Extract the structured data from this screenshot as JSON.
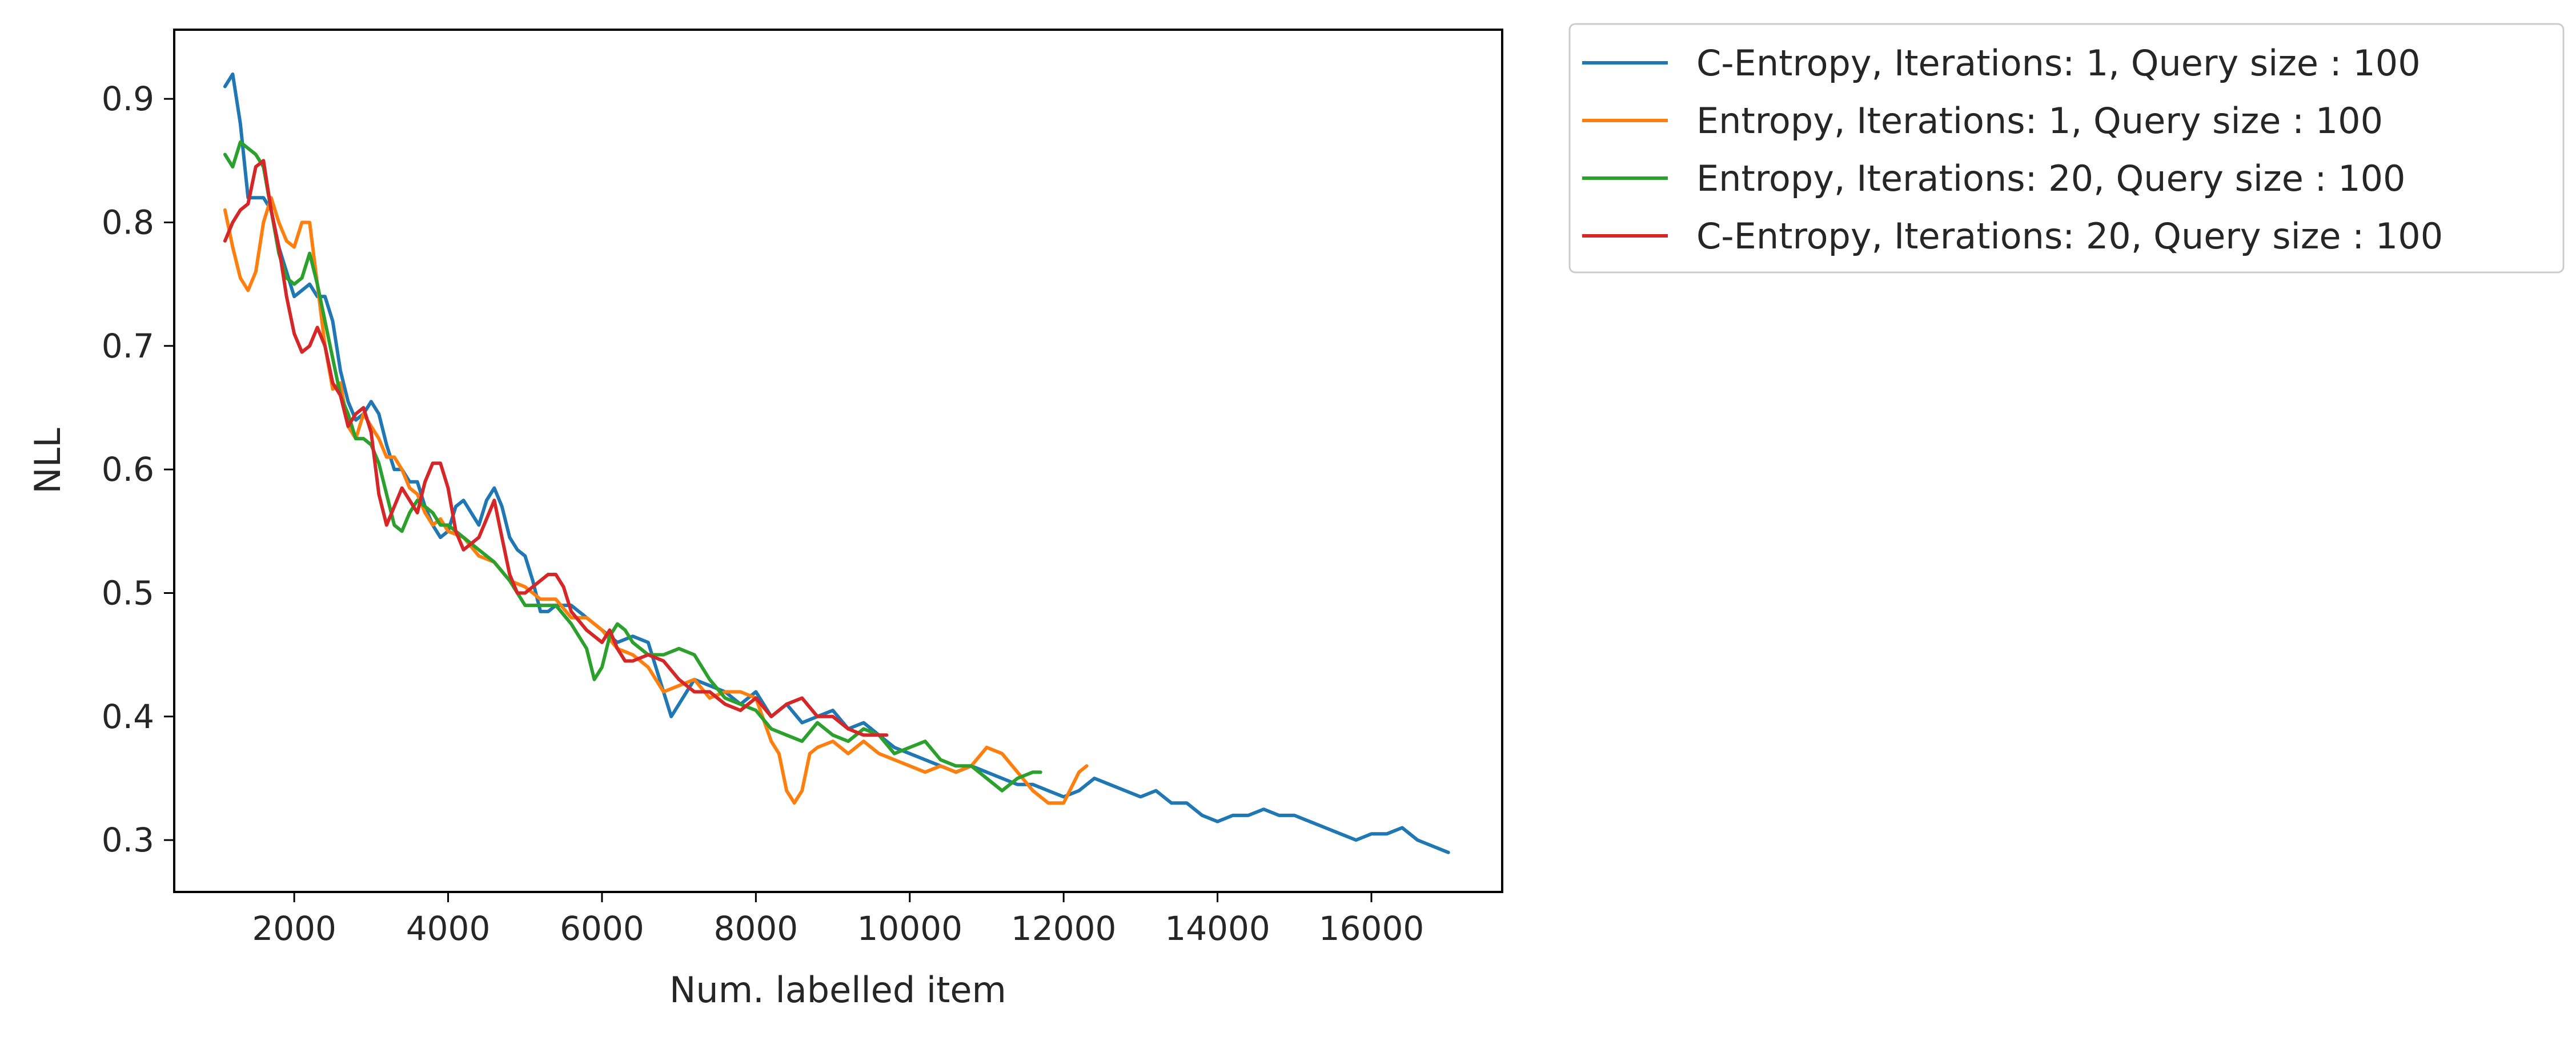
{
  "chart_data": {
    "type": "line",
    "xlabel": "Num. labelled item",
    "ylabel": "NLL",
    "xlim": [
      440,
      17700
    ],
    "ylim": [
      0.258,
      0.956
    ],
    "grid": false,
    "legend_position": "outside-top-right",
    "xticks": [
      {
        "value": 2000,
        "label": "2000"
      },
      {
        "value": 4000,
        "label": "4000"
      },
      {
        "value": 6000,
        "label": "6000"
      },
      {
        "value": 8000,
        "label": "8000"
      },
      {
        "value": 10000,
        "label": "10000"
      },
      {
        "value": 12000,
        "label": "12000"
      },
      {
        "value": 14000,
        "label": "14000"
      },
      {
        "value": 16000,
        "label": "16000"
      }
    ],
    "yticks": [
      {
        "value": 0.3,
        "label": "0.3"
      },
      {
        "value": 0.4,
        "label": "0.4"
      },
      {
        "value": 0.5,
        "label": "0.5"
      },
      {
        "value": 0.6,
        "label": "0.6"
      },
      {
        "value": 0.7,
        "label": "0.7"
      },
      {
        "value": 0.8,
        "label": "0.8"
      },
      {
        "value": 0.9,
        "label": "0.9"
      }
    ],
    "series": [
      {
        "name": "C-Entropy, Iterations: 1, Query size : 100",
        "color": "#1f77b4",
        "x": [
          1100,
          1200,
          1300,
          1400,
          1500,
          1600,
          1700,
          1800,
          1900,
          2000,
          2100,
          2200,
          2300,
          2400,
          2500,
          2600,
          2700,
          2800,
          2900,
          3000,
          3100,
          3200,
          3300,
          3400,
          3500,
          3600,
          3700,
          3800,
          3900,
          4000,
          4100,
          4200,
          4300,
          4400,
          4500,
          4600,
          4700,
          4800,
          4900,
          5000,
          5100,
          5200,
          5300,
          5400,
          5500,
          5600,
          5700,
          5800,
          5900,
          6000,
          6200,
          6400,
          6600,
          6800,
          6900,
          7000,
          7200,
          7400,
          7600,
          7800,
          8000,
          8200,
          8400,
          8600,
          8800,
          9000,
          9200,
          9400,
          9600,
          9800,
          10000,
          10200,
          10400,
          10600,
          10800,
          11000,
          11200,
          11400,
          11600,
          11800,
          12000,
          12200,
          12400,
          12600,
          12800,
          13000,
          13200,
          13400,
          13600,
          13800,
          14000,
          14200,
          14400,
          14600,
          14800,
          15000,
          15200,
          15400,
          15600,
          15800,
          16000,
          16200,
          16400,
          16600,
          16800,
          17000
        ],
        "y": [
          0.91,
          0.92,
          0.88,
          0.82,
          0.82,
          0.82,
          0.81,
          0.78,
          0.76,
          0.74,
          0.745,
          0.75,
          0.74,
          0.74,
          0.72,
          0.68,
          0.655,
          0.64,
          0.645,
          0.655,
          0.645,
          0.62,
          0.6,
          0.6,
          0.59,
          0.59,
          0.57,
          0.555,
          0.545,
          0.55,
          0.57,
          0.575,
          0.565,
          0.555,
          0.575,
          0.585,
          0.57,
          0.545,
          0.535,
          0.53,
          0.51,
          0.485,
          0.485,
          0.49,
          0.49,
          0.49,
          0.485,
          0.48,
          0.475,
          0.47,
          0.46,
          0.465,
          0.46,
          0.42,
          0.4,
          0.41,
          0.43,
          0.425,
          0.42,
          0.41,
          0.42,
          0.4,
          0.41,
          0.395,
          0.4,
          0.405,
          0.39,
          0.395,
          0.385,
          0.375,
          0.37,
          0.365,
          0.36,
          0.355,
          0.36,
          0.355,
          0.35,
          0.345,
          0.345,
          0.34,
          0.335,
          0.34,
          0.35,
          0.345,
          0.34,
          0.335,
          0.34,
          0.33,
          0.33,
          0.32,
          0.315,
          0.32,
          0.32,
          0.325,
          0.32,
          0.32,
          0.315,
          0.31,
          0.305,
          0.3,
          0.305,
          0.305,
          0.31,
          0.3,
          0.295,
          0.29
        ]
      },
      {
        "name": "Entropy, Iterations: 1, Query size : 100",
        "color": "#ff7f0e",
        "x": [
          1100,
          1200,
          1300,
          1400,
          1500,
          1600,
          1700,
          1800,
          1900,
          2000,
          2100,
          2200,
          2300,
          2400,
          2500,
          2600,
          2700,
          2800,
          2900,
          3000,
          3100,
          3200,
          3300,
          3400,
          3500,
          3600,
          3700,
          3800,
          3900,
          4000,
          4200,
          4400,
          4600,
          4800,
          5000,
          5200,
          5400,
          5600,
          5800,
          6000,
          6200,
          6400,
          6600,
          6800,
          7000,
          7200,
          7400,
          7600,
          7800,
          8000,
          8200,
          8300,
          8400,
          8500,
          8600,
          8700,
          8800,
          9000,
          9200,
          9400,
          9600,
          9800,
          10000,
          10200,
          10400,
          10600,
          10800,
          11000,
          11200,
          11400,
          11600,
          11800,
          12000,
          12200,
          12300
        ],
        "y": [
          0.81,
          0.78,
          0.755,
          0.745,
          0.76,
          0.8,
          0.82,
          0.8,
          0.785,
          0.78,
          0.8,
          0.8,
          0.75,
          0.7,
          0.665,
          0.67,
          0.635,
          0.625,
          0.645,
          0.635,
          0.625,
          0.61,
          0.61,
          0.6,
          0.585,
          0.58,
          0.565,
          0.555,
          0.56,
          0.55,
          0.545,
          0.53,
          0.525,
          0.51,
          0.505,
          0.495,
          0.495,
          0.48,
          0.48,
          0.47,
          0.455,
          0.45,
          0.44,
          0.42,
          0.425,
          0.43,
          0.415,
          0.42,
          0.42,
          0.415,
          0.38,
          0.37,
          0.34,
          0.33,
          0.34,
          0.37,
          0.375,
          0.38,
          0.37,
          0.38,
          0.37,
          0.365,
          0.36,
          0.355,
          0.36,
          0.355,
          0.36,
          0.375,
          0.37,
          0.355,
          0.34,
          0.33,
          0.33,
          0.355,
          0.36
        ]
      },
      {
        "name": "Entropy, Iterations: 20, Query size : 100",
        "color": "#2ca02c",
        "x": [
          1100,
          1200,
          1300,
          1400,
          1500,
          1600,
          1700,
          1800,
          1900,
          2000,
          2100,
          2200,
          2300,
          2400,
          2500,
          2600,
          2700,
          2800,
          2900,
          3000,
          3100,
          3200,
          3300,
          3400,
          3500,
          3600,
          3700,
          3800,
          3900,
          4000,
          4200,
          4400,
          4600,
          4800,
          5000,
          5200,
          5400,
          5600,
          5800,
          5900,
          6000,
          6100,
          6200,
          6300,
          6400,
          6600,
          6800,
          7000,
          7200,
          7400,
          7600,
          7800,
          8000,
          8200,
          8400,
          8600,
          8800,
          9000,
          9200,
          9400,
          9600,
          9800,
          10000,
          10200,
          10400,
          10600,
          10800,
          11000,
          11200,
          11400,
          11600,
          11700
        ],
        "y": [
          0.855,
          0.845,
          0.865,
          0.86,
          0.855,
          0.845,
          0.81,
          0.775,
          0.755,
          0.75,
          0.755,
          0.775,
          0.75,
          0.72,
          0.69,
          0.66,
          0.645,
          0.625,
          0.625,
          0.62,
          0.605,
          0.58,
          0.555,
          0.55,
          0.565,
          0.575,
          0.57,
          0.565,
          0.555,
          0.555,
          0.545,
          0.535,
          0.525,
          0.51,
          0.49,
          0.49,
          0.49,
          0.475,
          0.455,
          0.43,
          0.44,
          0.465,
          0.475,
          0.47,
          0.46,
          0.45,
          0.45,
          0.455,
          0.45,
          0.43,
          0.415,
          0.41,
          0.405,
          0.39,
          0.385,
          0.38,
          0.395,
          0.385,
          0.38,
          0.39,
          0.385,
          0.37,
          0.375,
          0.38,
          0.365,
          0.36,
          0.36,
          0.35,
          0.34,
          0.35,
          0.355,
          0.355
        ]
      },
      {
        "name": "C-Entropy, Iterations: 20, Query size : 100",
        "color": "#d62728",
        "x": [
          1100,
          1200,
          1300,
          1400,
          1500,
          1600,
          1700,
          1800,
          1900,
          2000,
          2100,
          2200,
          2300,
          2400,
          2500,
          2600,
          2700,
          2800,
          2900,
          3000,
          3100,
          3200,
          3300,
          3400,
          3500,
          3600,
          3700,
          3800,
          3900,
          4000,
          4100,
          4200,
          4300,
          4400,
          4500,
          4600,
          4700,
          4800,
          4900,
          5000,
          5100,
          5200,
          5300,
          5400,
          5500,
          5600,
          5800,
          6000,
          6100,
          6200,
          6300,
          6400,
          6600,
          6800,
          7000,
          7200,
          7400,
          7600,
          7800,
          8000,
          8200,
          8400,
          8600,
          8800,
          9000,
          9200,
          9400,
          9600,
          9700
        ],
        "y": [
          0.785,
          0.8,
          0.81,
          0.815,
          0.845,
          0.85,
          0.81,
          0.78,
          0.74,
          0.71,
          0.695,
          0.7,
          0.715,
          0.7,
          0.67,
          0.66,
          0.635,
          0.645,
          0.65,
          0.63,
          0.58,
          0.555,
          0.57,
          0.585,
          0.575,
          0.565,
          0.59,
          0.605,
          0.605,
          0.585,
          0.55,
          0.535,
          0.54,
          0.545,
          0.56,
          0.575,
          0.545,
          0.515,
          0.5,
          0.5,
          0.505,
          0.51,
          0.515,
          0.515,
          0.505,
          0.485,
          0.47,
          0.46,
          0.47,
          0.455,
          0.445,
          0.445,
          0.45,
          0.445,
          0.43,
          0.42,
          0.42,
          0.41,
          0.405,
          0.415,
          0.4,
          0.41,
          0.415,
          0.4,
          0.4,
          0.39,
          0.385,
          0.385,
          0.385
        ]
      }
    ]
  }
}
